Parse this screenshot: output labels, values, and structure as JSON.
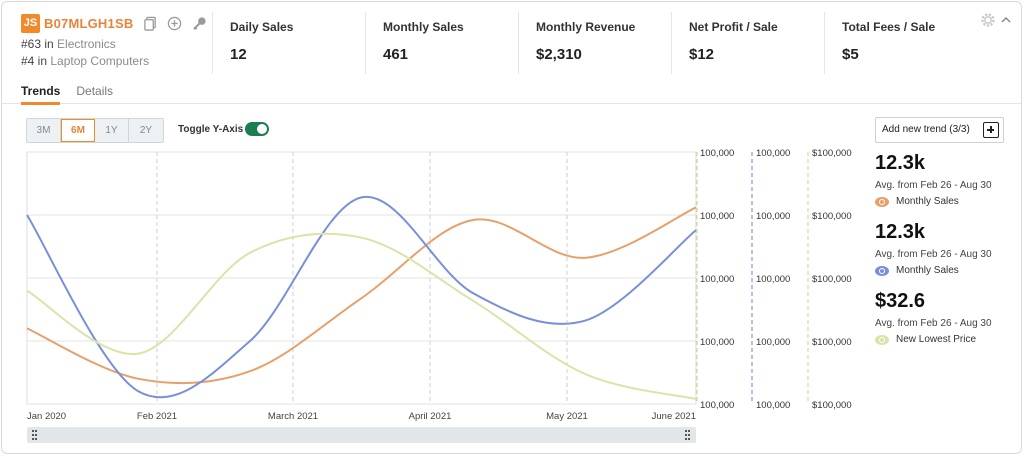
{
  "product": {
    "logo": "JS",
    "asin": "B07MLGH1SB",
    "ranks": [
      {
        "rank": "#63 in",
        "category": "Electronics"
      },
      {
        "rank": "#4 in",
        "category": "Laptop Computers"
      }
    ]
  },
  "metrics": [
    {
      "label": "Daily Sales",
      "value": "12"
    },
    {
      "label": "Monthly Sales",
      "value": "461"
    },
    {
      "label": "Monthly Revenue",
      "value": "$2,310"
    },
    {
      "label": "Net Profit / Sale",
      "value": "$12"
    },
    {
      "label": "Total Fees / Sale",
      "value": "$5"
    }
  ],
  "tabs": [
    {
      "label": "Trends",
      "active": true
    },
    {
      "label": "Details",
      "active": false
    }
  ],
  "controls": {
    "ranges": [
      "3M",
      "6M",
      "1Y",
      "2Y"
    ],
    "active_range": "6M",
    "toggle_label": "Toggle Y-Axis",
    "toggle_on": true,
    "add_trend_label": "Add new trend (3/3)"
  },
  "colors": {
    "accent": "#f08a2b",
    "monthly_sales_orange": "#e8a06a",
    "monthly_sales_blue": "#7a8fd9",
    "lowest_price": "#d9e4a8",
    "toggle": "#1d7d52"
  },
  "chart_data": {
    "type": "line",
    "x_labels": [
      "Jan 2020",
      "Feb 2021",
      "March 2021",
      "April 2021",
      "May 2021",
      "June 2021"
    ],
    "y_axes": [
      {
        "ticks": [
          "100,000",
          "100,000",
          "100,000",
          "100,000",
          "100,000"
        ]
      },
      {
        "ticks": [
          "100,000",
          "100,000",
          "100,000",
          "100,000",
          "100,000"
        ]
      },
      {
        "ticks": [
          "$100,000",
          "$100,000",
          "$100,000",
          "$100,000",
          "$100,000"
        ]
      }
    ],
    "grid": true,
    "series": [
      {
        "name": "Monthly Sales",
        "color": "#e8a06a",
        "values": [
          0.3,
          0.1,
          0.13,
          0.42,
          0.73,
          0.58,
          0.78
        ]
      },
      {
        "name": "Monthly Sales",
        "color": "#7a8fd9",
        "values": [
          0.75,
          0.05,
          0.25,
          0.82,
          0.44,
          0.33,
          0.69
        ]
      },
      {
        "name": "New Lowest Price",
        "color": "#d9e4a8",
        "values": [
          0.45,
          0.2,
          0.6,
          0.66,
          0.41,
          0.12,
          0.02
        ]
      }
    ]
  },
  "trends": [
    {
      "value": "12.3k",
      "avg": "Avg. from Feb 26 - Aug 30",
      "legend": "Monthly Sales",
      "color": "#e8a06a"
    },
    {
      "value": "12.3k",
      "avg": "Avg. from Feb 26 - Aug 30",
      "legend": "Monthly Sales",
      "color": "#7a8fd9"
    },
    {
      "value": "$32.6",
      "avg": "Avg. from Feb 26 - Aug 30",
      "legend": "New Lowest Price",
      "color": "#d9e4a8"
    }
  ]
}
